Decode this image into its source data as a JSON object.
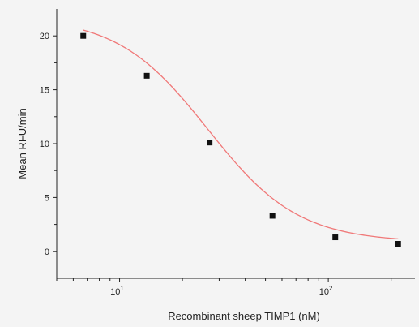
{
  "chart_data": {
    "type": "scatter",
    "xlabel": "Recombinant sheep TIMP1 (nM)",
    "ylabel": "Mean RFU/min",
    "x_scale": "log",
    "xlim": [
      5,
      260
    ],
    "ylim": [
      -2.5,
      22.5
    ],
    "x_ticks": [
      {
        "value": 10,
        "base": "10",
        "exp": "1"
      },
      {
        "value": 100,
        "base": "10",
        "exp": "2"
      }
    ],
    "y_ticks": [
      0,
      5,
      10,
      15,
      20
    ],
    "grid": false,
    "legend": "none",
    "series": [
      {
        "points": [
          {
            "x": 6.7,
            "y": 20.0
          },
          {
            "x": 13.5,
            "y": 16.3
          },
          {
            "x": 27,
            "y": 10.1
          },
          {
            "x": 54,
            "y": 3.3
          },
          {
            "x": 108,
            "y": 1.3
          },
          {
            "x": 216,
            "y": 0.7
          }
        ],
        "marker_color": "#111111"
      }
    ],
    "fit_curve": {
      "model": "four-parameter logistic",
      "top": 21.8,
      "bottom": 0.85,
      "ec50": 26.5,
      "hill": 2.0,
      "x_range": [
        6.7,
        216
      ],
      "color": "#f07878"
    }
  }
}
